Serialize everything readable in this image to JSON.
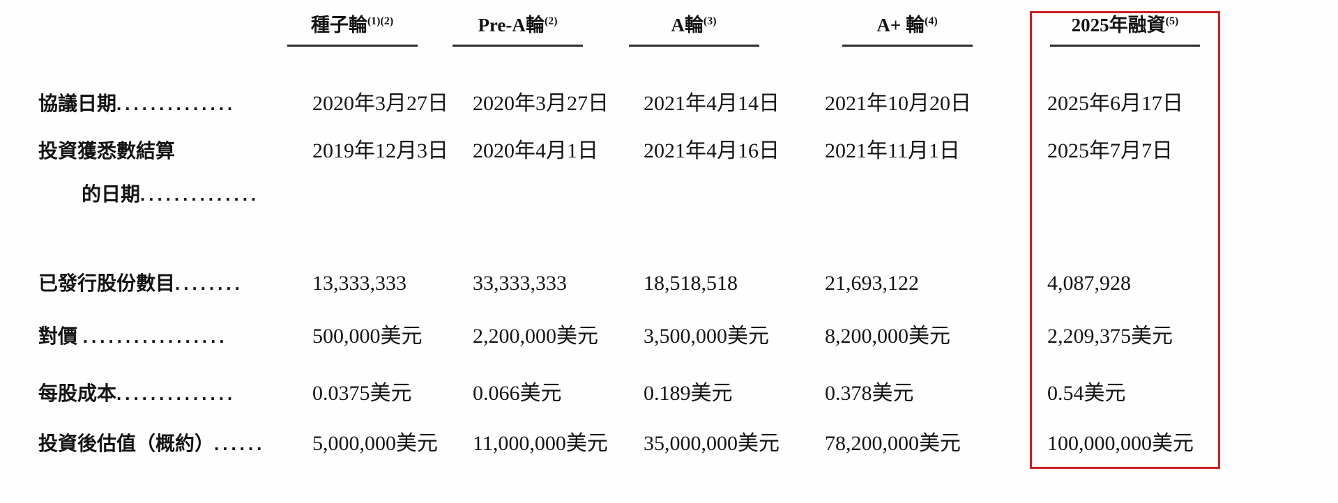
{
  "table": {
    "columns": [
      {
        "label": "種子輪",
        "superscript": "(1)(2)"
      },
      {
        "label": "Pre-A輪",
        "superscript": "(2)"
      },
      {
        "label": "A輪",
        "superscript": "(3)"
      },
      {
        "label": "A+ 輪",
        "superscript": "(4)"
      },
      {
        "label": "2025年融資",
        "superscript": "(5)",
        "highlighted": true
      }
    ],
    "rows": [
      {
        "label": "協議日期",
        "leader": "..............",
        "values": [
          "2020年3月27日",
          "2020年3月27日",
          "2021年4月14日",
          "2021年10月20日",
          "2025年6月17日"
        ]
      },
      {
        "label": "投資獲悉數結算",
        "label_line2": "的日期",
        "leader2": "..............",
        "values": [
          "2019年12月3日",
          "2020年4月1日",
          "2021年4月16日",
          "2021年11月1日",
          "2025年7月7日"
        ]
      },
      {
        "label": "已發行股份數目",
        "leader": "........",
        "values": [
          "13,333,333",
          "33,333,333",
          "18,518,518",
          "21,693,122",
          "4,087,928"
        ]
      },
      {
        "label": "對價 ",
        "leader": ".................",
        "values": [
          "500,000美元",
          "2,200,000美元",
          "3,500,000美元",
          "8,200,000美元",
          "2,209,375美元"
        ]
      },
      {
        "label": "每股成本",
        "leader": "..............",
        "values": [
          "0.0375美元",
          "0.066美元",
          "0.189美元",
          "0.378美元",
          "0.54美元"
        ]
      },
      {
        "label": "投資後估值（概約）",
        "leader": "......",
        "values": [
          "5,000,000美元",
          "11,000,000美元",
          "35,000,000美元",
          "78,200,000美元",
          "100,000,000美元"
        ]
      }
    ],
    "highlight_color": "#cc2027"
  }
}
